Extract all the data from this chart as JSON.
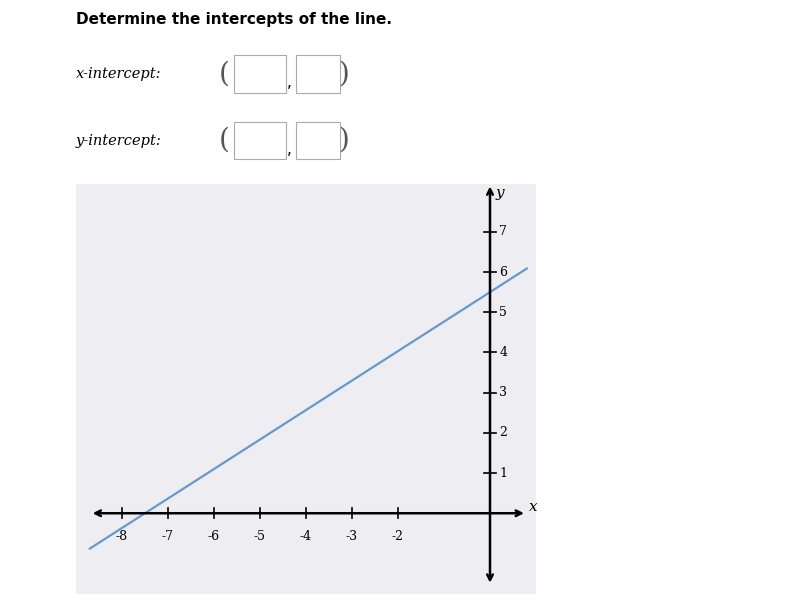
{
  "title": "Determine the intercepts of the line.",
  "line_slope": 0.7333,
  "line_y_intercept": 5.5,
  "line_color": "#6699cc",
  "line_width": 1.6,
  "x_min": -8.7,
  "x_max": 0.8,
  "y_min": -1.8,
  "y_max": 8.2,
  "x_ticks": [
    -8,
    -7,
    -6,
    -5,
    -4,
    -3,
    -2
  ],
  "y_ticks": [
    1,
    2,
    3,
    4,
    5,
    6,
    7
  ],
  "grid_color": "#c8c8c8",
  "grid_linewidth": 0.5,
  "background_color": "#eeeef2",
  "axis_label_x": "x",
  "axis_label_y": "y",
  "font_size_title": 11,
  "font_size_ticks": 9,
  "label_x": "x-intercept:",
  "label_y": "y-intercept:"
}
